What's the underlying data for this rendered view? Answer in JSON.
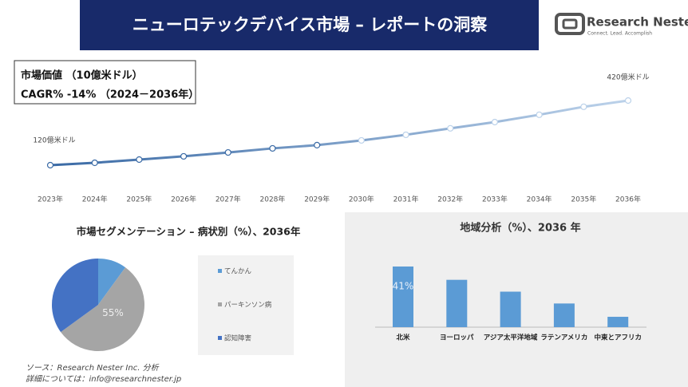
{
  "header": {
    "title": "ニューロテックデバイス市場 – レポートの洞察"
  },
  "logo": {
    "name": "Research Nester",
    "tagline": "Connect. Lead. Accomplish"
  },
  "summary": {
    "market_value": "市場価値 （10億米ドル）",
    "cagr": "CAGR%  -14% （2024－2036年）"
  },
  "chart_data": [
    {
      "type": "line",
      "categories": [
        "2023年",
        "2024年",
        "2025年",
        "2026年",
        "2027年",
        "2028年",
        "2029年",
        "2030年",
        "2031年",
        "2032年",
        "2033年",
        "2034年",
        "2035年",
        "2036年"
      ],
      "values": [
        120,
        131,
        146,
        161,
        179,
        198,
        213,
        235,
        261,
        291,
        320,
        354,
        391,
        420
      ],
      "value_labels": [
        "120億米ドル",
        null,
        null,
        null,
        null,
        null,
        null,
        null,
        null,
        null,
        null,
        null,
        null,
        "420億米ドル"
      ],
      "colors": [
        "#3a6aa5",
        "#bcd2ea"
      ]
    },
    {
      "type": "pie",
      "title": "市場セグメンテーション – 病状別（%）、2036年",
      "categories": [
        "てんかん",
        "パーキンソン病",
        "認知障害"
      ],
      "values": [
        10,
        55,
        35
      ],
      "value_labels": [
        null,
        "55%",
        null
      ],
      "colors": [
        "#5b9bd5",
        "#a5a5a5",
        "#4472c4"
      ]
    },
    {
      "type": "bar",
      "title": "地域分析（%）、2036 年",
      "categories": [
        "北米",
        "ヨーロッパ",
        "アジア太平洋地域",
        "ラテンアメリカ",
        "中東とアフリカ"
      ],
      "values": [
        41,
        32,
        24,
        16,
        7
      ],
      "value_labels": [
        "41%",
        null,
        null,
        null,
        null
      ],
      "color": "#5b9bd5"
    }
  ],
  "footer": {
    "source": "ソース：Research Nester Inc. 分析",
    "contact": "詳細については：info@researchnester.jp"
  }
}
